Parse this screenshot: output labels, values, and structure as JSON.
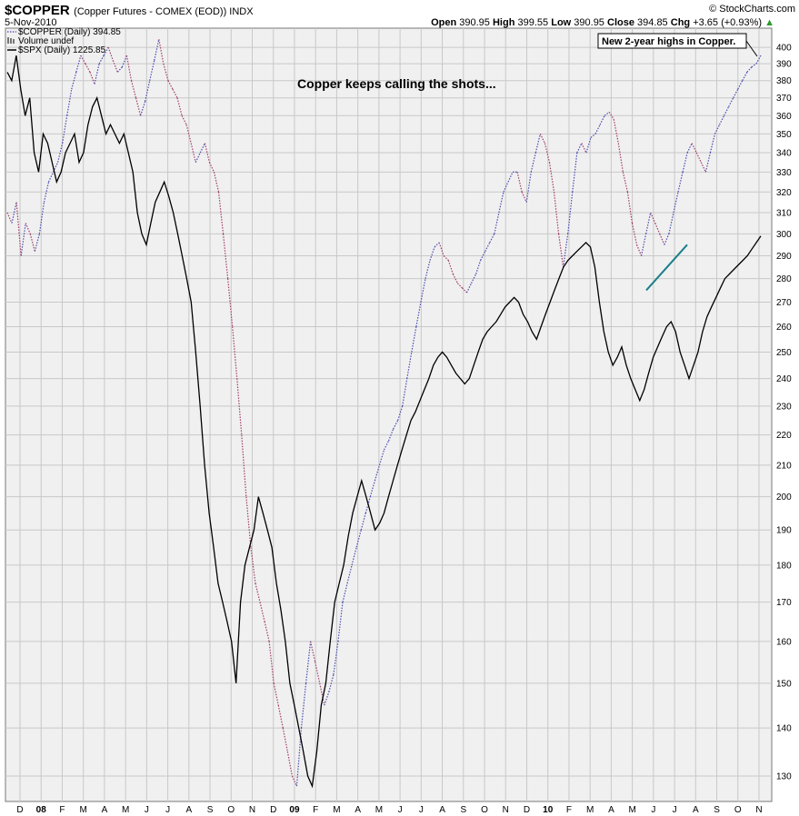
{
  "header": {
    "symbol": "$COPPER",
    "name": "(Copper Futures - COMEX (EOD)) INDX",
    "date": "5-Nov-2010",
    "logo": "© StockCharts.com",
    "open_label": "Open",
    "open": "390.95",
    "high_label": "High",
    "high": "399.55",
    "low_label": "Low",
    "low": "390.95",
    "close_label": "Close",
    "close": "394.85",
    "chg_label": "Chg",
    "chg": "+3.65 (+0.93%)"
  },
  "legend": [
    {
      "label": "$COPPER (Daily) 394.85",
      "style": "dotted",
      "color": "#3f3fb4"
    },
    {
      "label": "Volume undef",
      "style": "bars",
      "color": "#777777"
    },
    {
      "label": "$SPX (Daily) 1225.85",
      "style": "solid",
      "color": "#000000"
    }
  ],
  "annotations": {
    "headline": "Copper keeps calling the shots...",
    "callout": "New 2-year highs in Copper."
  },
  "colors": {
    "background": "#f0f0f0",
    "grid": "#c8c8c8",
    "copper_up": "#4a4ab0",
    "copper_down": "#a03c6a",
    "spx": "#000000",
    "trendline": "#1a7f8a"
  },
  "chart_data": {
    "type": "line",
    "scale": "log",
    "x_labels": [
      "D",
      "08",
      "F",
      "M",
      "A",
      "M",
      "J",
      "J",
      "A",
      "S",
      "O",
      "N",
      "D",
      "09",
      "F",
      "M",
      "A",
      "M",
      "J",
      "J",
      "A",
      "S",
      "O",
      "N",
      "D",
      "10",
      "F",
      "M",
      "A",
      "M",
      "J",
      "J",
      "A",
      "S",
      "O",
      "N"
    ],
    "y_ticks": [
      130,
      140,
      150,
      160,
      170,
      180,
      190,
      200,
      210,
      220,
      230,
      240,
      250,
      260,
      270,
      280,
      290,
      300,
      310,
      320,
      330,
      340,
      350,
      360,
      370,
      380,
      390,
      400
    ],
    "ylim": [
      125,
      412
    ],
    "series": [
      {
        "name": "$COPPER (Daily)",
        "style": "dotted",
        "values": [
          310,
          305,
          315,
          290,
          305,
          300,
          292,
          300,
          315,
          325,
          330,
          335,
          345,
          360,
          375,
          385,
          395,
          390,
          385,
          378,
          390,
          395,
          400,
          392,
          385,
          388,
          395,
          380,
          370,
          360,
          368,
          380,
          392,
          405,
          390,
          380,
          375,
          370,
          360,
          355,
          345,
          335,
          340,
          345,
          335,
          330,
          320,
          300,
          280,
          260,
          240,
          220,
          200,
          185,
          175,
          170,
          165,
          160,
          150,
          145,
          140,
          135,
          130,
          128,
          140,
          150,
          160,
          155,
          150,
          145,
          148,
          152,
          160,
          170,
          175,
          180,
          185,
          190,
          195,
          200,
          205,
          210,
          215,
          218,
          222,
          225,
          230,
          240,
          250,
          260,
          270,
          280,
          288,
          294,
          296,
          290,
          288,
          282,
          278,
          276,
          274,
          278,
          282,
          288,
          292,
          296,
          300,
          310,
          320,
          325,
          330,
          330,
          320,
          315,
          330,
          340,
          350,
          345,
          335,
          320,
          300,
          285,
          300,
          320,
          340,
          345,
          340,
          348,
          350,
          355,
          360,
          362,
          358,
          345,
          330,
          320,
          305,
          295,
          290,
          300,
          310,
          305,
          300,
          295,
          300,
          310,
          320,
          330,
          340,
          345,
          340,
          335,
          330,
          340,
          350,
          355,
          360,
          365,
          370,
          375,
          380,
          385,
          388,
          390,
          395
        ]
      },
      {
        "name": "$SPX (Daily)",
        "style": "solid",
        "values": [
          385,
          380,
          395,
          375,
          360,
          370,
          340,
          330,
          350,
          345,
          335,
          325,
          330,
          340,
          345,
          350,
          335,
          340,
          355,
          365,
          370,
          360,
          350,
          355,
          350,
          345,
          350,
          340,
          330,
          310,
          300,
          295,
          305,
          315,
          320,
          325,
          318,
          310,
          300,
          290,
          280,
          270,
          250,
          230,
          210,
          195,
          185,
          175,
          170,
          165,
          160,
          150,
          170,
          180,
          185,
          190,
          200,
          195,
          190,
          185,
          175,
          168,
          160,
          150,
          145,
          140,
          135,
          130,
          128,
          135,
          145,
          150,
          160,
          170,
          175,
          180,
          188,
          195,
          200,
          205,
          200,
          195,
          190,
          192,
          195,
          200,
          205,
          210,
          215,
          220,
          225,
          228,
          232,
          236,
          240,
          245,
          248,
          250,
          248,
          245,
          242,
          240,
          238,
          240,
          245,
          250,
          255,
          258,
          260,
          262,
          265,
          268,
          270,
          272,
          270,
          265,
          262,
          258,
          255,
          260,
          265,
          270,
          275,
          280,
          285,
          288,
          290,
          292,
          294,
          296,
          294,
          285,
          270,
          258,
          250,
          245,
          248,
          252,
          245,
          240,
          236,
          232,
          236,
          242,
          248,
          252,
          256,
          260,
          262,
          258,
          250,
          245,
          240,
          245,
          250,
          258,
          264,
          268,
          272,
          276,
          280,
          282,
          284,
          286,
          288,
          290,
          293,
          296,
          299
        ]
      }
    ],
    "trendline": {
      "start": 275,
      "end": 295
    }
  }
}
